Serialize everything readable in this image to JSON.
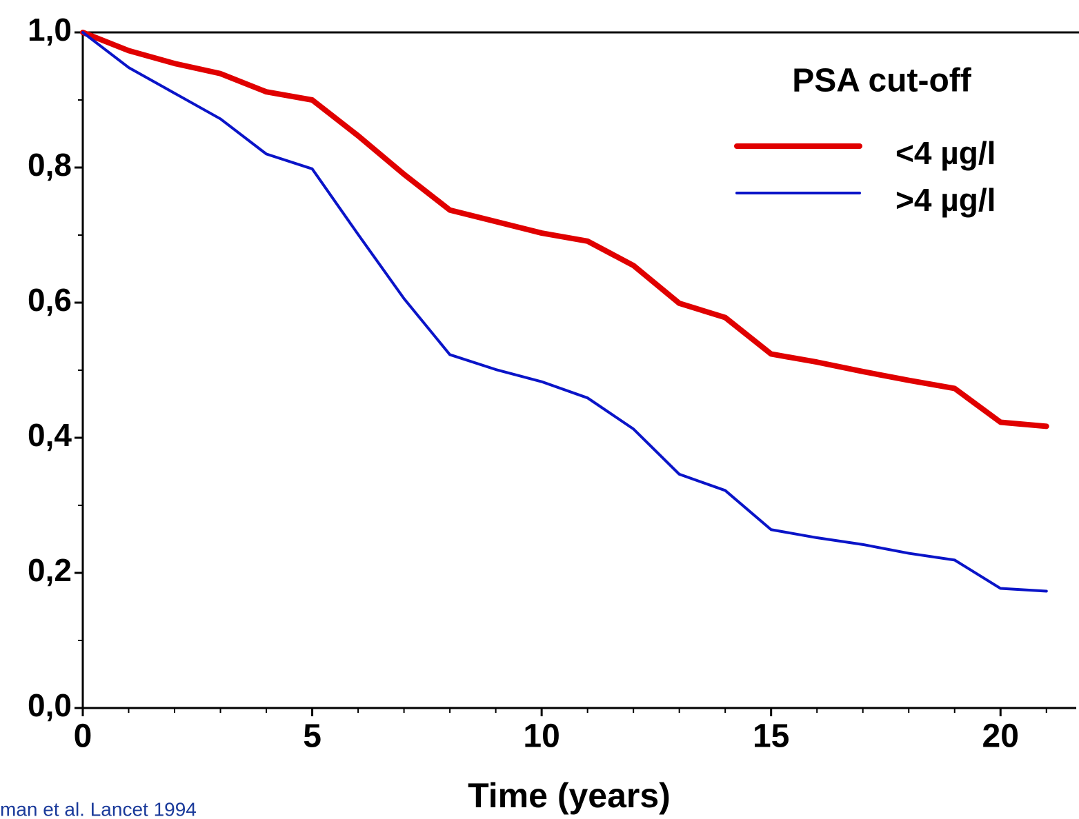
{
  "chart_data": {
    "type": "line",
    "x_label": "Time (years)",
    "legend_title": "PSA cut-off",
    "legend_position": "upper right",
    "source": "man et al. Lancet 1994",
    "x": [
      0,
      1,
      2,
      3,
      4,
      5,
      6,
      7,
      8,
      9,
      10,
      11,
      12,
      13,
      14,
      15,
      16,
      17,
      18,
      19,
      20,
      21
    ],
    "series": [
      {
        "name": "<4 µg/l",
        "color": "#e00000",
        "line_width": 8,
        "values": [
          1.0,
          0.973,
          0.954,
          0.939,
          0.912,
          0.9,
          0.847,
          0.79,
          0.737,
          0.72,
          0.703,
          0.691,
          0.655,
          0.599,
          0.578,
          0.524,
          0.512,
          0.498,
          0.485,
          0.473,
          0.423,
          0.417
        ]
      },
      {
        "name": ">4 µg/l",
        "color": "#0a14c8",
        "line_width": 4,
        "values": [
          1.0,
          0.948,
          0.91,
          0.872,
          0.82,
          0.798,
          0.701,
          0.606,
          0.523,
          0.501,
          0.483,
          0.459,
          0.413,
          0.346,
          0.322,
          0.264,
          0.252,
          0.242,
          0.229,
          0.219,
          0.177,
          0.173
        ]
      }
    ],
    "xlim": [
      0,
      21.65
    ],
    "ylim": [
      0,
      1
    ],
    "xticks": [
      0,
      5,
      10,
      15,
      20
    ],
    "yticks": [
      {
        "value": 0,
        "label": "0,0"
      },
      {
        "value": 0.2,
        "label": "0,2"
      },
      {
        "value": 0.4,
        "label": "0,4"
      },
      {
        "value": 0.6,
        "label": "0,6"
      },
      {
        "value": 0.8,
        "label": "0,8"
      },
      {
        "value": 1,
        "label": "1,0"
      }
    ],
    "x_minor_ticks": [
      1,
      2,
      3,
      4,
      6,
      7,
      8,
      9,
      11,
      12,
      13,
      14,
      16,
      17,
      18,
      19,
      21
    ],
    "y_minor_ticks": [
      0.1,
      0.3,
      0.5,
      0.7,
      0.9
    ],
    "grid": false
  }
}
